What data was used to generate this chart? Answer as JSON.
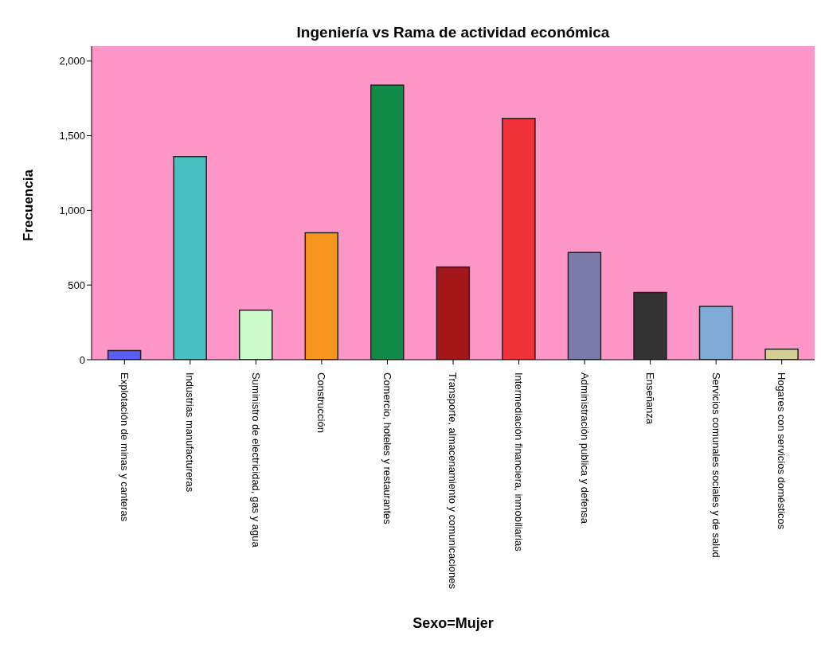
{
  "chart_data": {
    "type": "bar",
    "title": "Ingeniería vs Rama de actividad económica",
    "xlabel": "Sexo=Mujer",
    "ylabel": "Frecuencia",
    "categories": [
      "Explotación de minas y canteras",
      "Industrias manufactureras",
      "Suministro de electricidad, gas y agua",
      "Construcción",
      "Comercio, hoteles y restaurantes",
      "Transporte, almacenamiento y comunicaciones",
      "Intermediación financiera, inmobiliarias",
      "Administración publica y defensa",
      "Enseñanza",
      "Servicios comunales sociales y de salud",
      "Hogares con servicios domésticos"
    ],
    "values": [
      61,
      1361,
      332,
      850,
      1839,
      621,
      1616,
      718,
      450,
      357,
      70
    ],
    "colors": [
      "#5b5ef5",
      "#48c0c2",
      "#ccfccb",
      "#f7961f",
      "#0f8a47",
      "#a3161a",
      "#f03238",
      "#7a7ba8",
      "#333333",
      "#7eaad5",
      "#d4cf94"
    ],
    "ylim": [
      0,
      2100
    ],
    "yticks": [
      0,
      500,
      {
        "value": 1000,
        "label": "1,000"
      },
      {
        "value": 1500,
        "label": "1,500"
      },
      {
        "value": 2000,
        "label": "2,000"
      }
    ],
    "grid": false,
    "legend": false
  }
}
